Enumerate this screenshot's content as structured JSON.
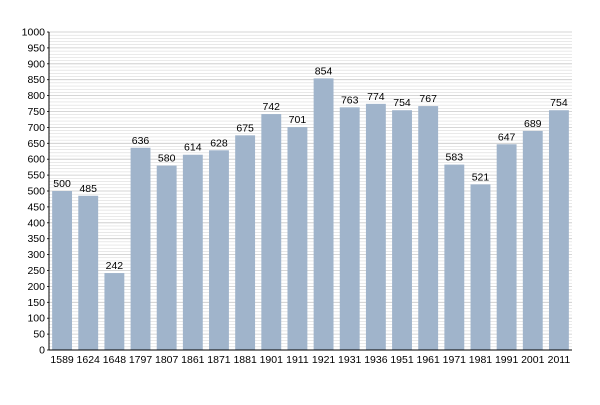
{
  "colors": {
    "bar": "#a0b4cb",
    "grid": "#c8c8c8",
    "axis": "#000000",
    "background": "#ffffff"
  },
  "chart_data": {
    "type": "bar",
    "title": "",
    "xlabel": "",
    "ylabel": "",
    "ylim": [
      0,
      1000
    ],
    "yticks": [
      0,
      50,
      100,
      150,
      200,
      250,
      300,
      350,
      400,
      450,
      500,
      550,
      600,
      650,
      700,
      750,
      800,
      850,
      900,
      950,
      1000
    ],
    "grid": true,
    "legend": "none",
    "categories": [
      "1589",
      "1624",
      "1648",
      "1797",
      "1807",
      "1861",
      "1871",
      "1881",
      "1901",
      "1911",
      "1921",
      "1931",
      "1936",
      "1951",
      "1961",
      "1971",
      "1981",
      "1991",
      "2001",
      "2011"
    ],
    "values": [
      500,
      485,
      242,
      636,
      580,
      614,
      628,
      675,
      742,
      701,
      854,
      763,
      774,
      754,
      767,
      583,
      521,
      647,
      689,
      754
    ]
  }
}
